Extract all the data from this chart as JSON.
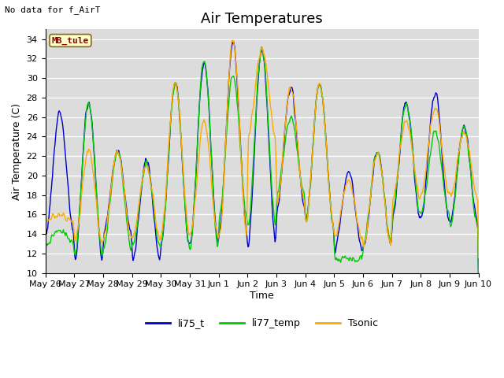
{
  "title": "Air Temperatures",
  "no_data_text": "No data for f_AirT",
  "ylabel": "Air Temperature (C)",
  "xlabel": "Time",
  "mb_tule_label": "MB_tule",
  "legend_entries": [
    "li75_t",
    "li77_temp",
    "Tsonic"
  ],
  "line_colors": [
    "#0000cc",
    "#00cc00",
    "#ffaa00"
  ],
  "ylim": [
    10,
    35
  ],
  "yticks": [
    10,
    12,
    14,
    16,
    18,
    20,
    22,
    24,
    26,
    28,
    30,
    32,
    34
  ],
  "background_color": "#dcdcdc",
  "title_fontsize": 13,
  "label_fontsize": 9,
  "tick_fontsize": 8,
  "figsize": [
    6.4,
    4.8
  ],
  "dpi": 100,
  "day_labels": [
    "May 26",
    "May 27",
    "May 28",
    "May 29",
    "May 30",
    "May 31",
    "Jun 1",
    "Jun 2",
    "Jun 3",
    "Jun 4",
    "Jun 5",
    "Jun 6",
    "Jun 7",
    "Jun 8",
    "Jun 9",
    "Jun 10"
  ],
  "day_maxima_blue": [
    26.5,
    27.5,
    22.5,
    21.5,
    29.5,
    31.5,
    33.5,
    33.0,
    29.0,
    29.5,
    20.5,
    22.5,
    27.5,
    28.5,
    25.0,
    27.0
  ],
  "day_minima_blue": [
    14.0,
    11.0,
    14.0,
    11.0,
    13.0,
    13.0,
    14.0,
    13.0,
    16.5,
    15.0,
    12.0,
    12.5,
    15.5,
    15.5,
    15.0,
    15.0
  ],
  "day_maxima_green": [
    14.5,
    27.5,
    22.5,
    21.0,
    29.5,
    32.0,
    30.5,
    33.0,
    26.0,
    29.5,
    11.5,
    22.5,
    27.5,
    24.5,
    25.0,
    14.5
  ],
  "day_minima_green": [
    13.0,
    11.5,
    12.5,
    12.5,
    13.0,
    12.5,
    15.5,
    14.5,
    18.0,
    15.0,
    11.5,
    13.0,
    16.0,
    16.0,
    14.5,
    14.5
  ],
  "day_maxima_orange": [
    16.0,
    22.5,
    22.5,
    21.0,
    29.5,
    25.5,
    34.0,
    33.0,
    29.0,
    29.5,
    19.5,
    22.5,
    25.5,
    27.0,
    24.5,
    24.5
  ],
  "day_minima_orange": [
    15.5,
    13.0,
    13.5,
    13.5,
    14.0,
    13.5,
    13.5,
    24.0,
    17.0,
    15.0,
    13.5,
    12.5,
    17.5,
    18.0,
    17.5,
    17.0
  ]
}
